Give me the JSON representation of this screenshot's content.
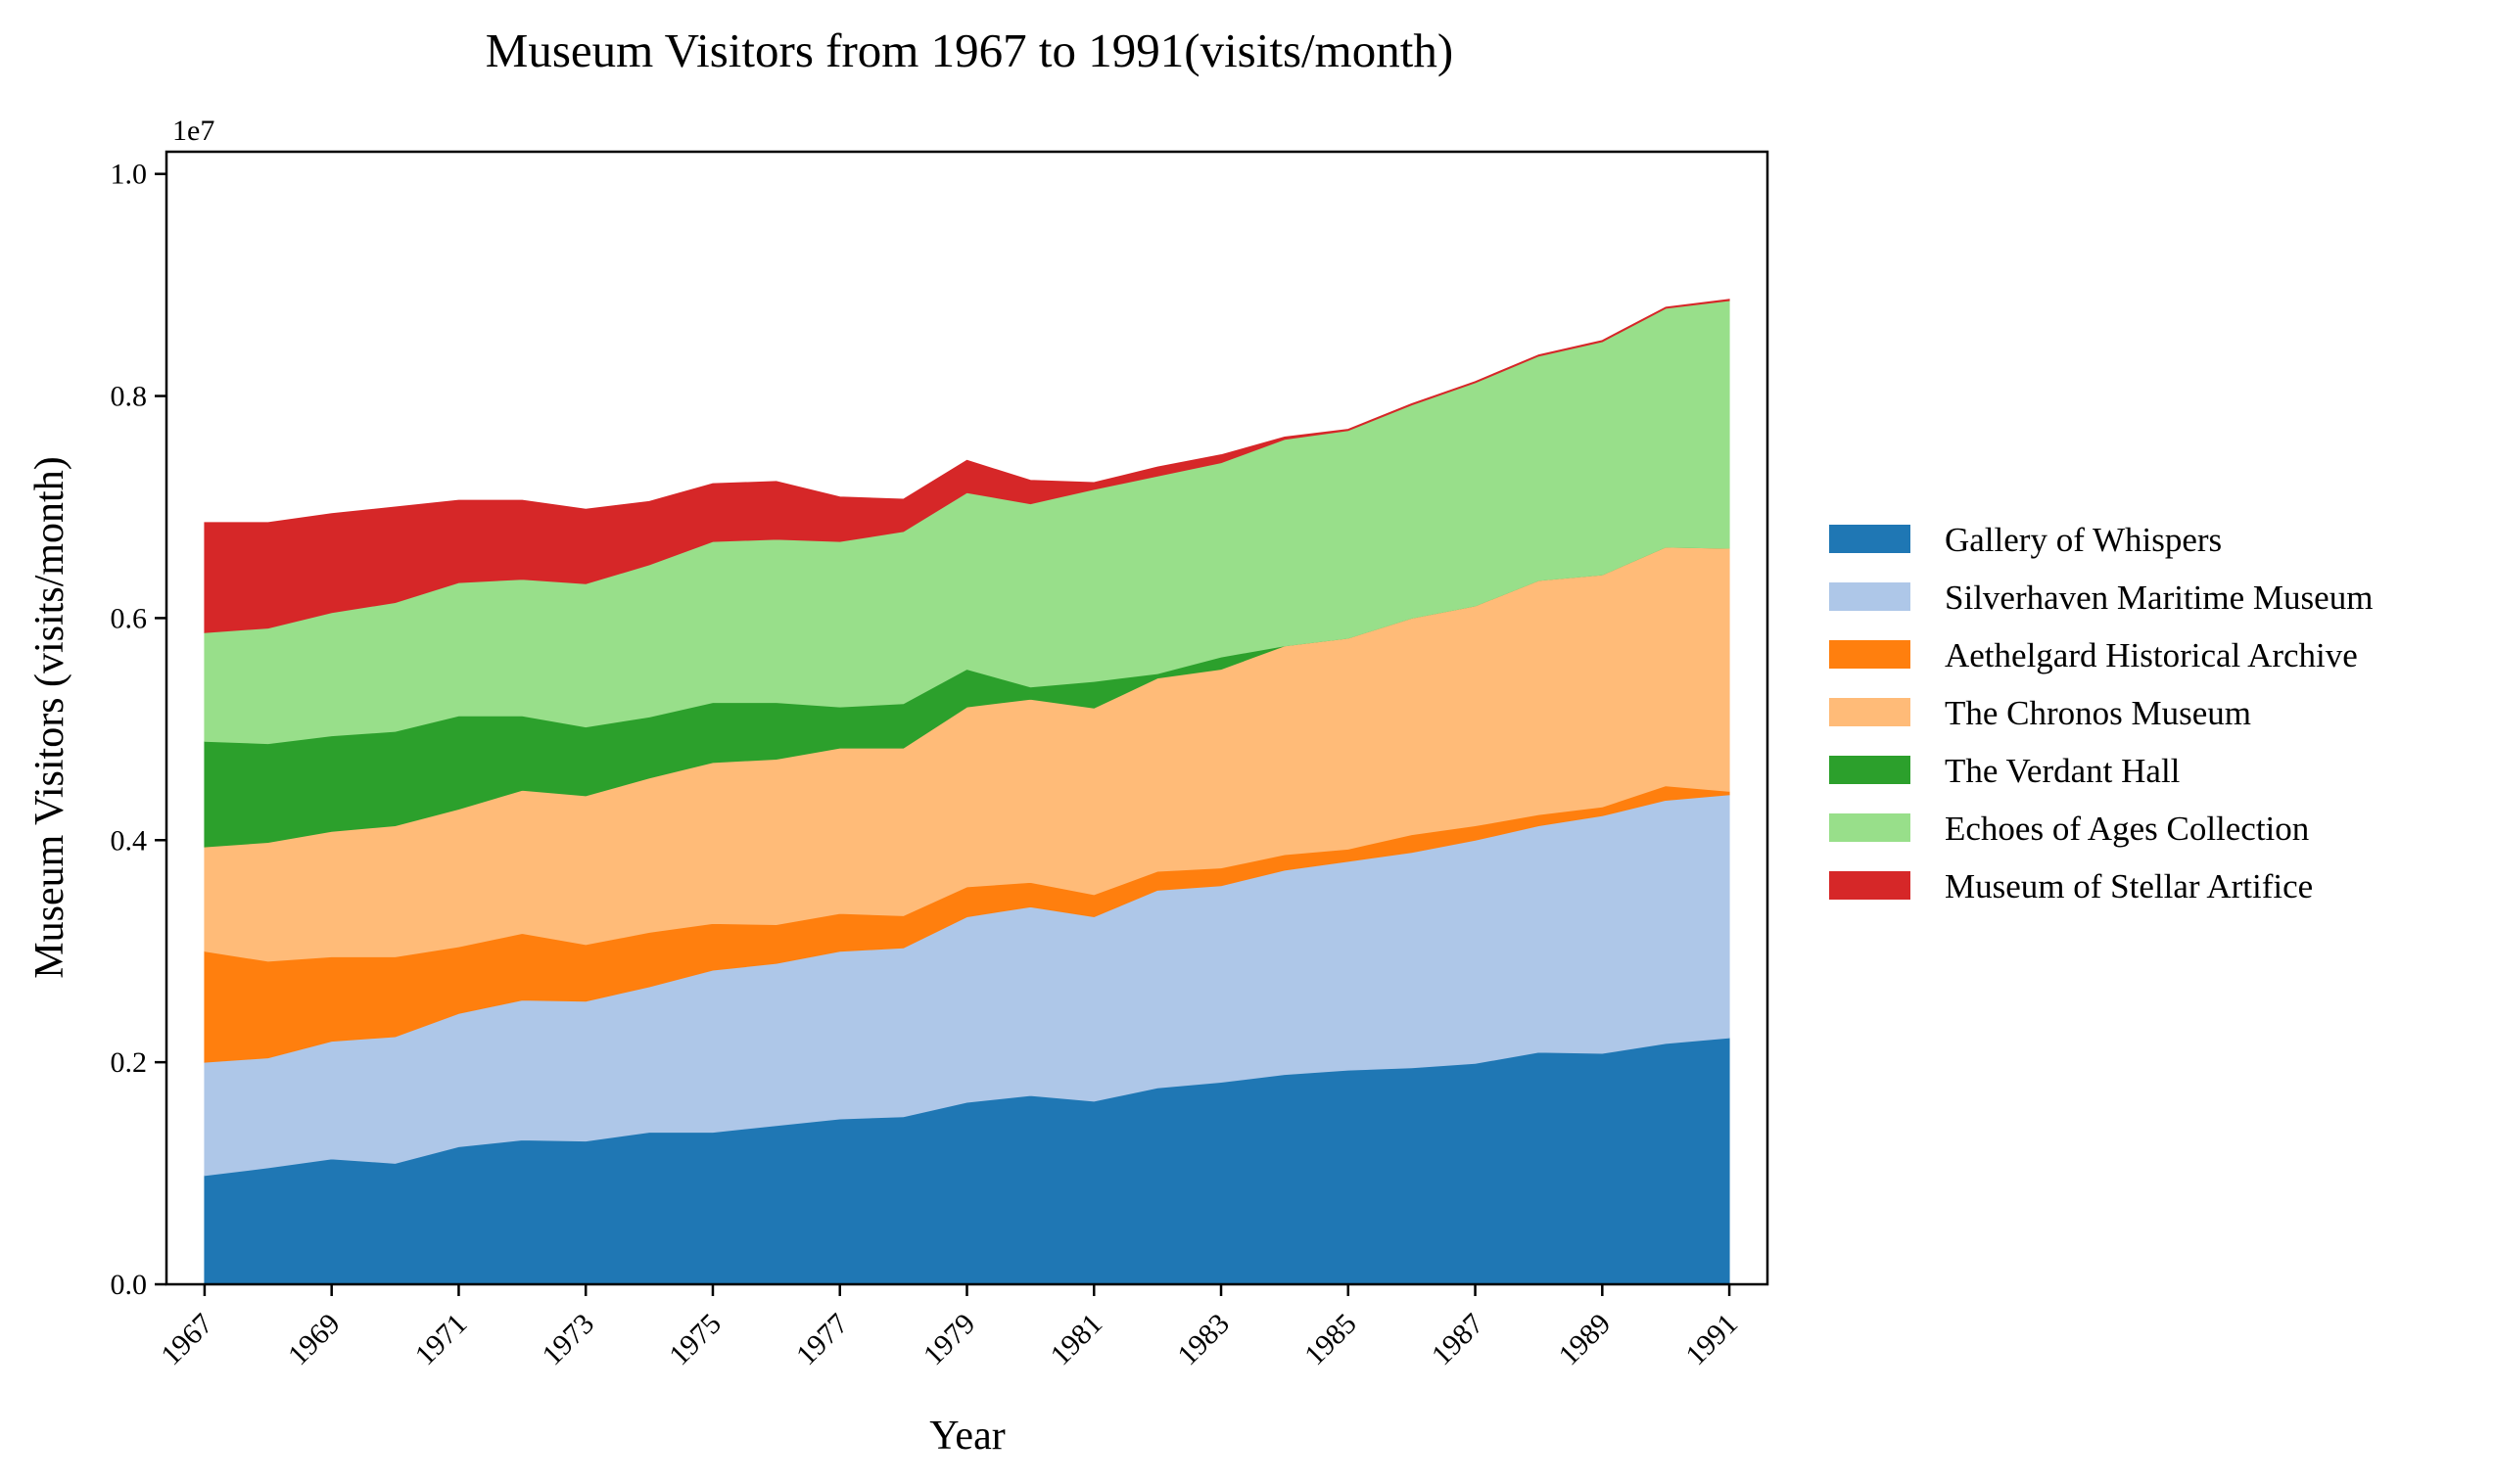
{
  "chart_data": {
    "type": "area",
    "stacked": true,
    "title": "Museum Visitors from 1967 to 1991(visits/month)",
    "xlabel": "Year",
    "ylabel": "Museum Visitors (visits/month)",
    "y_scale_label": "1e7",
    "y_scale": 10000000,
    "xlim": [
      1966.4,
      1991.6
    ],
    "ylim": [
      0,
      10200000
    ],
    "grid": false,
    "legend_position": "right",
    "x": [
      1967,
      1968,
      1969,
      1970,
      1971,
      1972,
      1973,
      1974,
      1975,
      1976,
      1977,
      1978,
      1979,
      1980,
      1981,
      1982,
      1983,
      1984,
      1985,
      1986,
      1987,
      1988,
      1989,
      1990,
      1991
    ],
    "x_ticks": [
      1967,
      1969,
      1971,
      1973,
      1975,
      1977,
      1979,
      1981,
      1983,
      1985,
      1987,
      1989,
      1991
    ],
    "y_ticks": [
      0,
      2000000,
      4000000,
      6000000,
      8000000,
      10000000
    ],
    "y_tick_labels": [
      "0.0",
      "0.2",
      "0.4",
      "0.6",
      "0.8",
      "1.0"
    ],
    "series": [
      {
        "name": "Gallery of Whispers",
        "color": "#1f77b4",
        "values": [
          980000,
          1050000,
          1130000,
          1090000,
          1240000,
          1300000,
          1290000,
          1370000,
          1370000,
          1430000,
          1490000,
          1510000,
          1640000,
          1700000,
          1650000,
          1770000,
          1820000,
          1890000,
          1930000,
          1950000,
          1990000,
          2090000,
          2080000,
          2170000,
          2220000
        ]
      },
      {
        "name": "Silverhaven Maritime Museum",
        "color": "#aec7e8",
        "values": [
          1020000,
          990000,
          1060000,
          1140000,
          1200000,
          1260000,
          1260000,
          1310000,
          1460000,
          1460000,
          1510000,
          1520000,
          1670000,
          1700000,
          1660000,
          1780000,
          1770000,
          1840000,
          1880000,
          1940000,
          2010000,
          2040000,
          2140000,
          2190000,
          2190000
        ]
      },
      {
        "name": "Aethelgard Historical Archive",
        "color": "#ff7f0e",
        "values": [
          1000000,
          870000,
          760000,
          720000,
          600000,
          600000,
          510000,
          490000,
          420000,
          350000,
          340000,
          290000,
          270000,
          220000,
          200000,
          170000,
          160000,
          140000,
          110000,
          160000,
          130000,
          100000,
          80000,
          130000,
          30000
        ]
      },
      {
        "name": "The Chronos Museum",
        "color": "#ffbb78",
        "values": [
          940000,
          1070000,
          1130000,
          1180000,
          1240000,
          1290000,
          1340000,
          1390000,
          1450000,
          1490000,
          1490000,
          1510000,
          1620000,
          1650000,
          1680000,
          1740000,
          1790000,
          1880000,
          1900000,
          1950000,
          1980000,
          2110000,
          2090000,
          2150000,
          2190000
        ]
      },
      {
        "name": "The Verdant Hall",
        "color": "#2ca02c",
        "values": [
          950000,
          890000,
          860000,
          850000,
          840000,
          670000,
          620000,
          550000,
          540000,
          510000,
          370000,
          400000,
          340000,
          110000,
          240000,
          40000,
          110000,
          0,
          0,
          0,
          0,
          0,
          0,
          0,
          0
        ]
      },
      {
        "name": "Echoes of Ages Collection",
        "color": "#98df8a",
        "values": [
          980000,
          1040000,
          1110000,
          1160000,
          1200000,
          1230000,
          1290000,
          1370000,
          1450000,
          1470000,
          1490000,
          1550000,
          1590000,
          1650000,
          1730000,
          1780000,
          1750000,
          1860000,
          1870000,
          1920000,
          2010000,
          2020000,
          2100000,
          2150000,
          2230000
        ]
      },
      {
        "name": "Museum of Stellar Artifice",
        "color": "#d62728",
        "values": [
          990000,
          950000,
          890000,
          860000,
          740000,
          710000,
          670000,
          570000,
          520000,
          520000,
          400000,
          290000,
          290000,
          210000,
          60000,
          80000,
          70000,
          20000,
          10000,
          10000,
          10000,
          10000,
          10000,
          10000,
          10000
        ]
      }
    ]
  }
}
